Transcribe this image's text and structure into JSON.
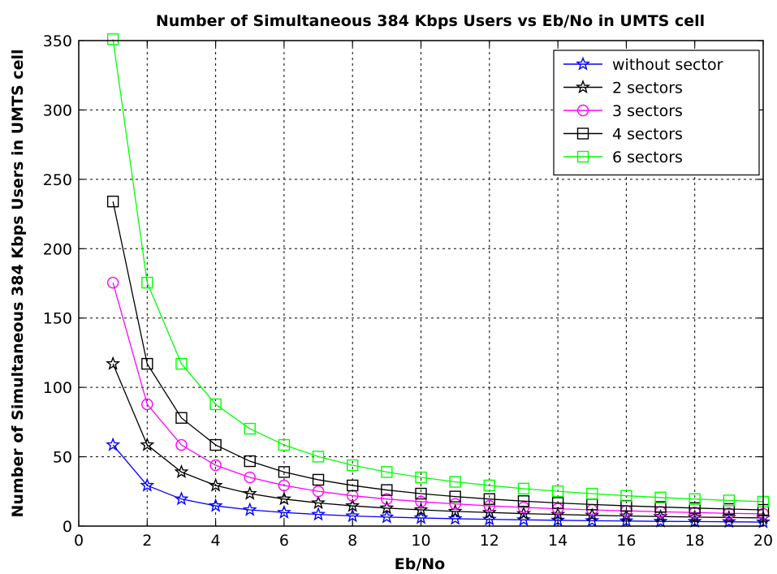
{
  "chart_data": {
    "type": "line",
    "title": "Number of Simultaneous 384 Kbps Users vs Eb/No in UMTS cell",
    "xlabel": "Eb/No",
    "ylabel": "Number of Simultaneous 384 Kbps Users in UMTS cell",
    "xlim": [
      0,
      20
    ],
    "ylim": [
      0,
      350
    ],
    "xticks": [
      0,
      2,
      4,
      6,
      8,
      10,
      12,
      14,
      16,
      18,
      20
    ],
    "yticks": [
      0,
      50,
      100,
      150,
      200,
      250,
      300,
      350
    ],
    "grid": true,
    "legend_position": "top-right",
    "x": [
      1,
      2,
      3,
      4,
      5,
      6,
      7,
      8,
      9,
      10,
      11,
      12,
      13,
      14,
      15,
      16,
      17,
      18,
      19,
      20
    ],
    "series": [
      {
        "name": "without sector",
        "color": "#0000ff",
        "marker": "star",
        "values": [
          58.5,
          29.3,
          19.5,
          14.6,
          11.7,
          9.8,
          8.4,
          7.3,
          6.5,
          5.9,
          5.3,
          4.9,
          4.5,
          4.2,
          3.9,
          3.7,
          3.4,
          3.3,
          3.1,
          2.9
        ]
      },
      {
        "name": "2 sectors",
        "color": "#000000",
        "marker": "star",
        "values": [
          117,
          58.5,
          39,
          29.3,
          23.4,
          19.5,
          16.7,
          14.6,
          13,
          11.7,
          10.6,
          9.8,
          9,
          8.4,
          7.8,
          7.3,
          6.9,
          6.5,
          6.2,
          5.9
        ]
      },
      {
        "name": "3 sectors",
        "color": "#ff00ff",
        "marker": "circle",
        "values": [
          175.5,
          87.8,
          58.5,
          43.9,
          35.1,
          29.3,
          25.1,
          21.9,
          19.5,
          17.6,
          16,
          14.6,
          13.5,
          12.5,
          11.7,
          11,
          10.3,
          9.8,
          9.2,
          8.8
        ]
      },
      {
        "name": "4 sectors",
        "color": "#000000",
        "marker": "square",
        "values": [
          234,
          117,
          78,
          58.5,
          46.8,
          39,
          33.4,
          29.3,
          26,
          23.4,
          21.3,
          19.5,
          18,
          16.7,
          15.6,
          14.6,
          13.8,
          13,
          12.3,
          11.7
        ]
      },
      {
        "name": "6 sectors",
        "color": "#00ff00",
        "marker": "square",
        "values": [
          351,
          175.5,
          117,
          87.8,
          70.2,
          58.5,
          50.1,
          43.9,
          39,
          35.1,
          31.9,
          29.3,
          27,
          25.1,
          23.4,
          21.9,
          20.6,
          19.5,
          18.5,
          17.6
        ]
      }
    ]
  }
}
